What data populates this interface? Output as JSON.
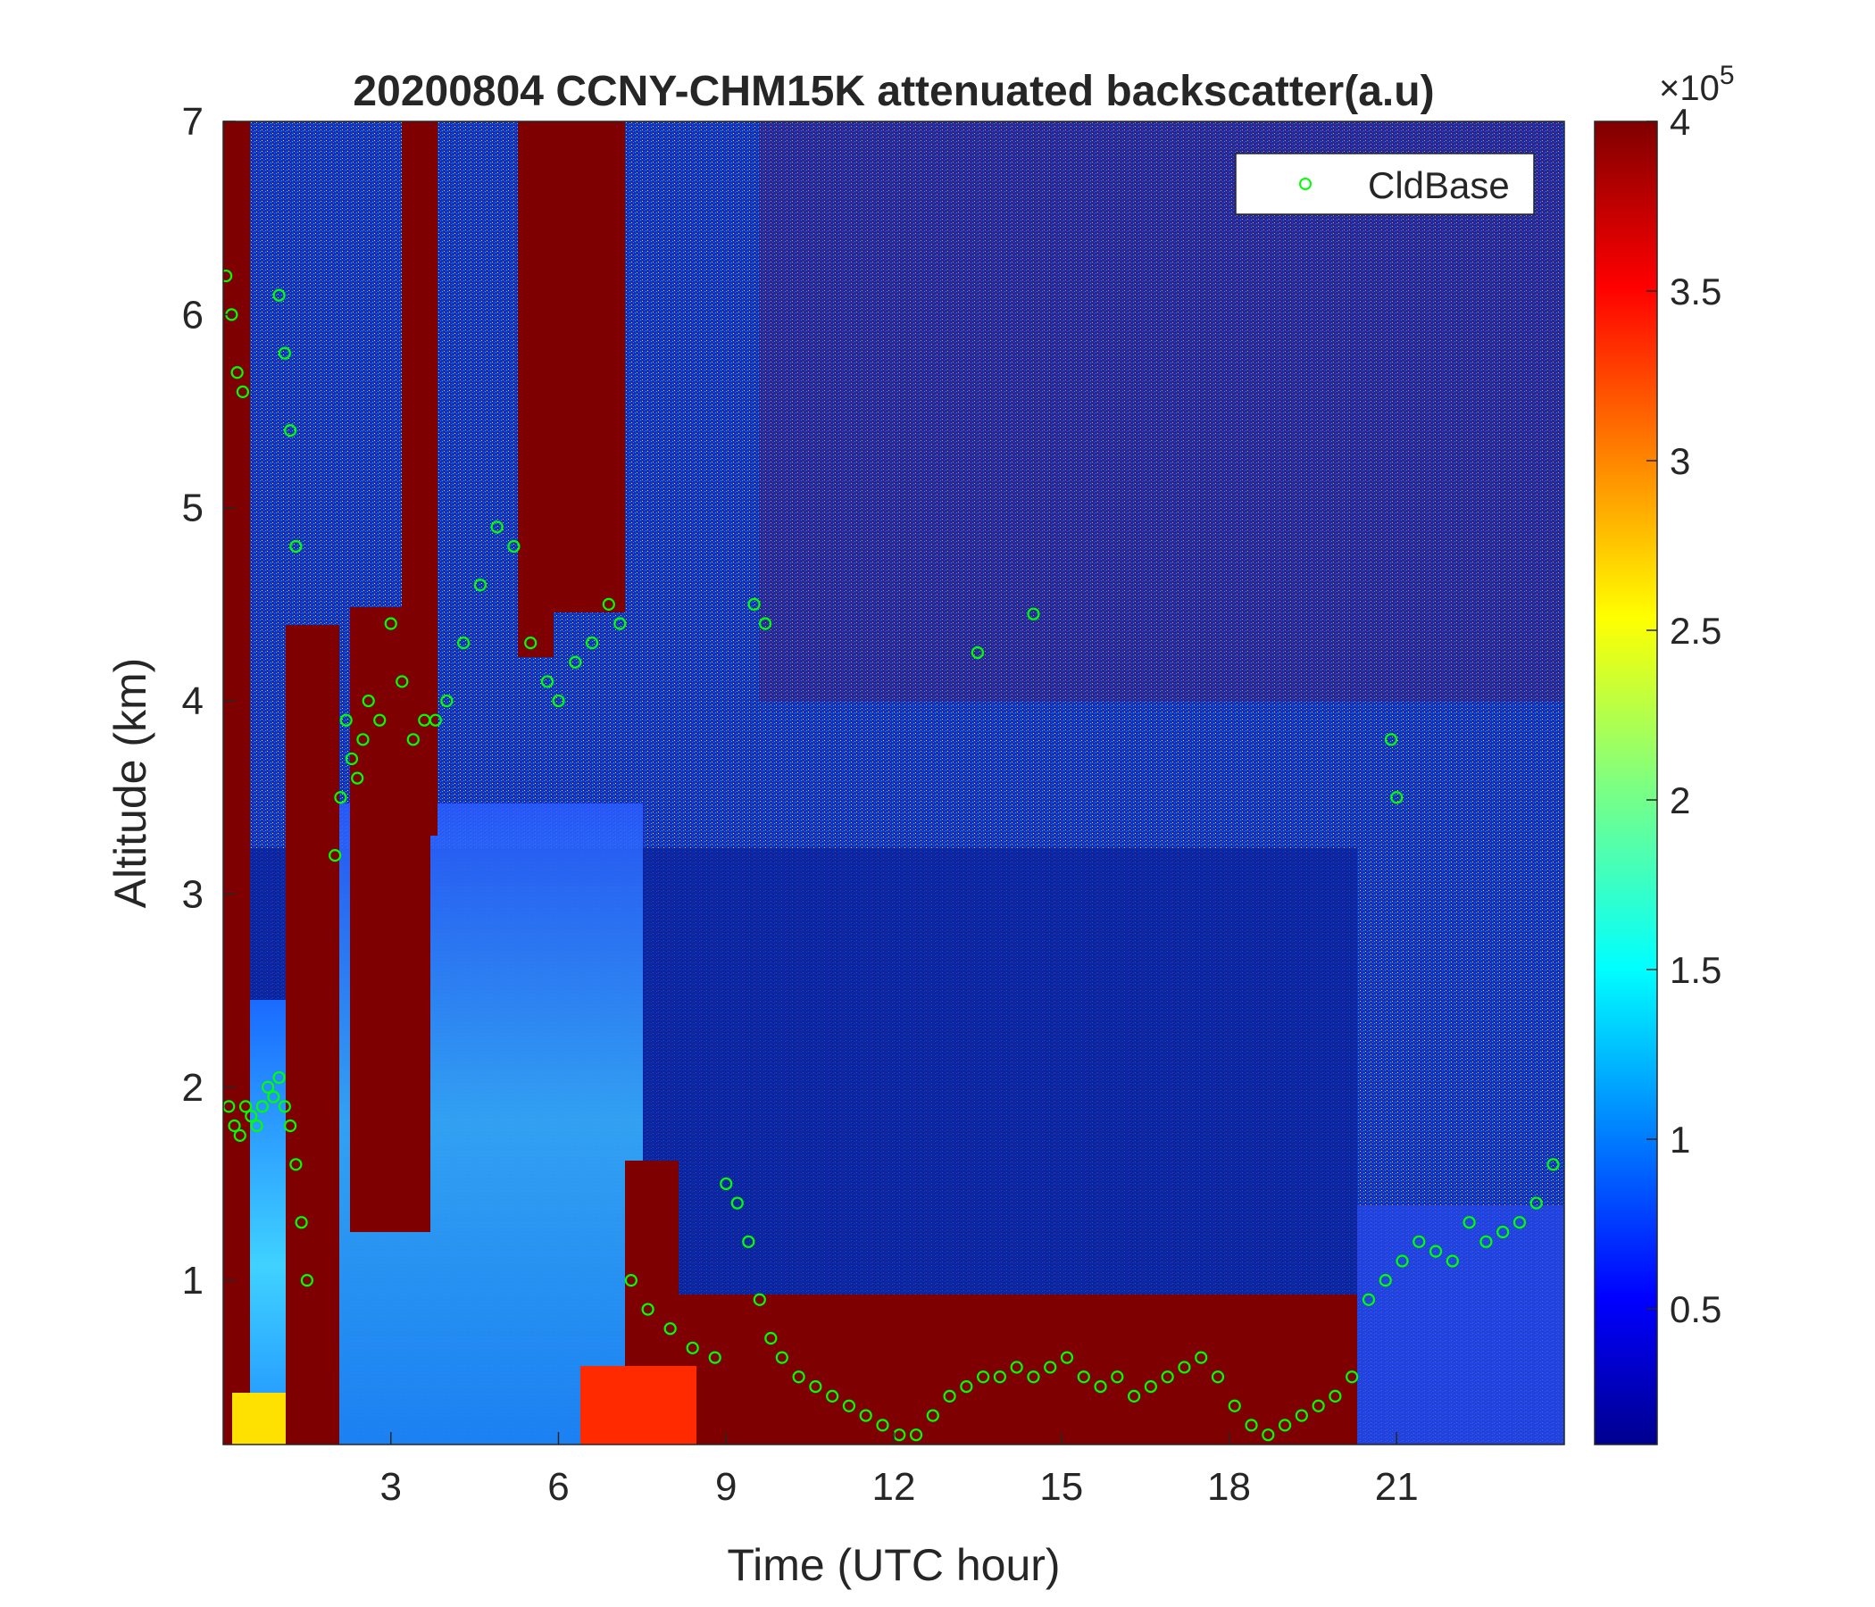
{
  "chart_data": {
    "type": "heatmap",
    "title": "20200804 CCNY-CHM15K attenuated backscatter(a.u)",
    "xlabel": "Time (UTC hour)",
    "ylabel": "Altitude (km)",
    "xlim": [
      0,
      24
    ],
    "ylim": [
      0.15,
      7
    ],
    "xticks": [
      3,
      6,
      9,
      12,
      15,
      18,
      21
    ],
    "yticks": [
      1,
      2,
      3,
      4,
      5,
      6,
      7
    ],
    "colorbar": {
      "colormap": "jet",
      "clim": [
        0.1,
        4
      ],
      "ticks": [
        0.5,
        1,
        1.5,
        2,
        2.5,
        3,
        3.5,
        4
      ],
      "multiplier_base": "×10",
      "multiplier_exp": "5"
    },
    "legend": {
      "location": "top-right",
      "entries": [
        "CldBase"
      ]
    },
    "cloud_base": {
      "name": "CldBase",
      "marker": "circle",
      "color": "#00ff00",
      "x": [
        0.05,
        0.15,
        0.25,
        0.35,
        1.0,
        1.1,
        1.2,
        1.3,
        0.1,
        0.2,
        0.3,
        0.4,
        0.5,
        0.6,
        0.7,
        0.8,
        0.9,
        1.0,
        1.1,
        1.2,
        1.3,
        1.4,
        1.5,
        2.0,
        2.1,
        2.2,
        2.3,
        2.4,
        2.5,
        2.6,
        2.8,
        3.0,
        3.2,
        3.4,
        3.6,
        3.8,
        4.0,
        4.3,
        4.6,
        4.9,
        5.2,
        5.5,
        5.8,
        6.0,
        6.3,
        6.6,
        6.9,
        7.1,
        7.3,
        7.6,
        8.0,
        8.4,
        8.8,
        9.0,
        9.2,
        9.4,
        9.6,
        9.8,
        10.0,
        10.3,
        10.6,
        10.9,
        11.2,
        11.5,
        11.8,
        12.1,
        12.4,
        12.7,
        13.0,
        13.3,
        13.6,
        13.9,
        14.2,
        14.5,
        14.8,
        15.1,
        15.4,
        15.7,
        16.0,
        16.3,
        16.6,
        16.9,
        17.2,
        17.5,
        17.8,
        18.1,
        18.4,
        18.7,
        19.0,
        19.3,
        19.6,
        19.9,
        20.2,
        20.5,
        20.8,
        21.1,
        21.4,
        21.7,
        22.0,
        22.3,
        22.6,
        22.9,
        23.2,
        23.5,
        23.8,
        20.9,
        21.0,
        9.5,
        9.7,
        13.5,
        14.5
      ],
      "y": [
        6.2,
        6.0,
        5.7,
        5.6,
        6.1,
        5.8,
        5.4,
        4.8,
        1.9,
        1.8,
        1.75,
        1.9,
        1.85,
        1.8,
        1.9,
        2.0,
        1.95,
        2.05,
        1.9,
        1.8,
        1.6,
        1.3,
        1.0,
        3.2,
        3.5,
        3.9,
        3.7,
        3.6,
        3.8,
        4.0,
        3.9,
        4.4,
        4.1,
        3.8,
        3.9,
        3.9,
        4.0,
        4.3,
        4.6,
        4.9,
        4.8,
        4.3,
        4.1,
        4.0,
        4.2,
        4.3,
        4.5,
        4.4,
        1.0,
        0.85,
        0.75,
        0.65,
        0.6,
        1.5,
        1.4,
        1.2,
        0.9,
        0.7,
        0.6,
        0.5,
        0.45,
        0.4,
        0.35,
        0.3,
        0.25,
        0.2,
        0.2,
        0.3,
        0.4,
        0.45,
        0.5,
        0.5,
        0.55,
        0.5,
        0.55,
        0.6,
        0.5,
        0.45,
        0.5,
        0.4,
        0.45,
        0.5,
        0.55,
        0.6,
        0.5,
        0.35,
        0.25,
        0.2,
        0.25,
        0.3,
        0.35,
        0.4,
        0.5,
        0.9,
        1.0,
        1.1,
        1.2,
        1.15,
        1.1,
        1.3,
        1.2,
        1.25,
        1.3,
        1.4,
        1.6,
        3.8,
        3.5,
        4.5,
        4.4,
        4.25,
        4.45
      ]
    }
  }
}
